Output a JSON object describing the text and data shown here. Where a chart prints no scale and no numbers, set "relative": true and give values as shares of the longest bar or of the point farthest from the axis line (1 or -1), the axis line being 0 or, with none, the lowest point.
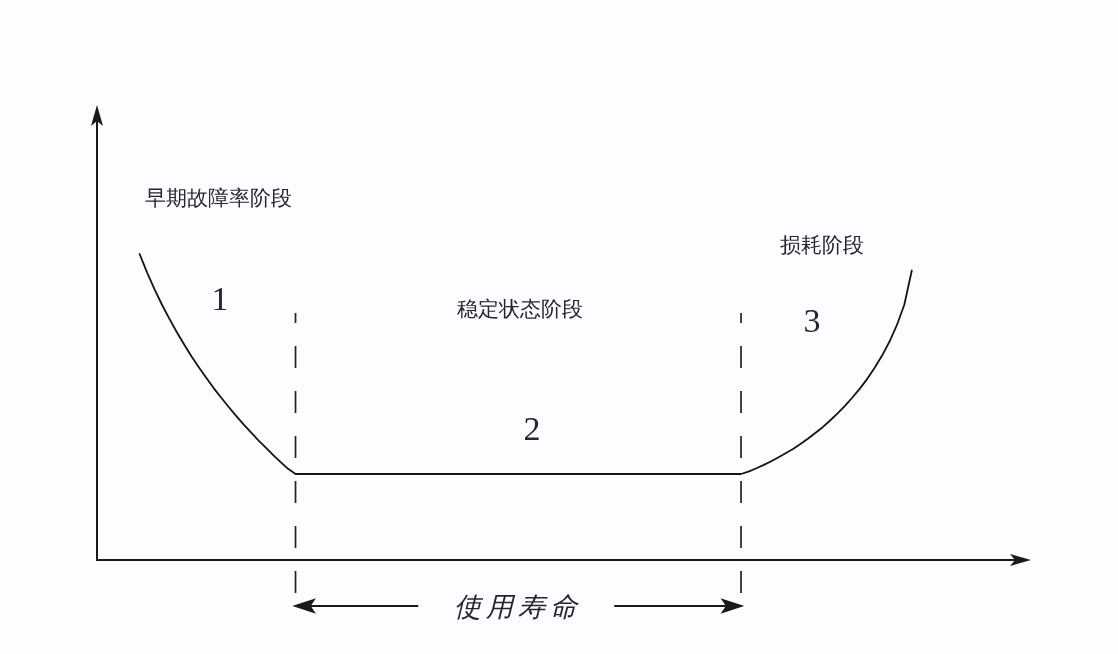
{
  "chart_data": {
    "type": "line",
    "relative": true,
    "color": "#151515",
    "categories": [
      null,
      null,
      null,
      null,
      null,
      null,
      null,
      null,
      null,
      null,
      null,
      null,
      null,
      null,
      null,
      null,
      null,
      null,
      null,
      null,
      null,
      null,
      null,
      null,
      null,
      null,
      null,
      null,
      null,
      null,
      null,
      null,
      null,
      null,
      null,
      null,
      null,
      null,
      null,
      null,
      null,
      null,
      null,
      null,
      null,
      null,
      null,
      null,
      null,
      null,
      null,
      null,
      null,
      null,
      null,
      null,
      null,
      null,
      null,
      null,
      null,
      null,
      null,
      null,
      null,
      null,
      null,
      null,
      null,
      null,
      null,
      null,
      null,
      null,
      null,
      null,
      null,
      null,
      null,
      null,
      null,
      null,
      null,
      null,
      null,
      null,
      null,
      null,
      null,
      null,
      null,
      null,
      null,
      null,
      null,
      null,
      null,
      null,
      null,
      null,
      null,
      null,
      null,
      null,
      null
    ],
    "values": [
      1,
      0.94,
      0.885,
      0.835,
      0.789,
      0.745,
      0.704,
      0.665,
      0.629,
      0.595,
      0.561,
      0.53,
      0.5,
      0.471,
      0.443,
      0.417,
      0.391,
      0.367,
      0.343,
      0.32,
      0.298,
      0.281,
      0.281,
      0.281,
      0.281,
      0.281,
      0.281,
      0.281,
      0.281,
      0.281,
      0.281,
      0.281,
      0.281,
      0.281,
      0.281,
      0.281,
      0.281,
      0.281,
      0.281,
      0.281,
      0.281,
      0.281,
      0.281,
      0.281,
      0.281,
      0.281,
      0.281,
      0.281,
      0.281,
      0.281,
      0.281,
      0.281,
      0.281,
      0.281,
      0.281,
      0.281,
      0.281,
      0.281,
      0.281,
      0.281,
      0.281,
      0.281,
      0.281,
      0.281,
      0.281,
      0.281,
      0.281,
      0.281,
      0.281,
      0.281,
      0.281,
      0.281,
      0.281,
      0.281,
      0.281,
      0.281,
      0.281,
      0.281,
      0.281,
      0.281,
      0.281,
      0.281,
      0.289,
      0.299,
      0.31,
      0.322,
      0.335,
      0.349,
      0.363,
      0.379,
      0.396,
      0.415,
      0.434,
      0.456,
      0.479,
      0.504,
      0.531,
      0.56,
      0.592,
      0.628,
      0.668,
      0.714,
      0.768,
      0.835,
      0.946
    ],
    "annotations": [
      "早期故障率阶段",
      "1",
      "稳定状态阶段",
      "2",
      "损耗阶段",
      "3",
      "使用寿命"
    ]
  }
}
